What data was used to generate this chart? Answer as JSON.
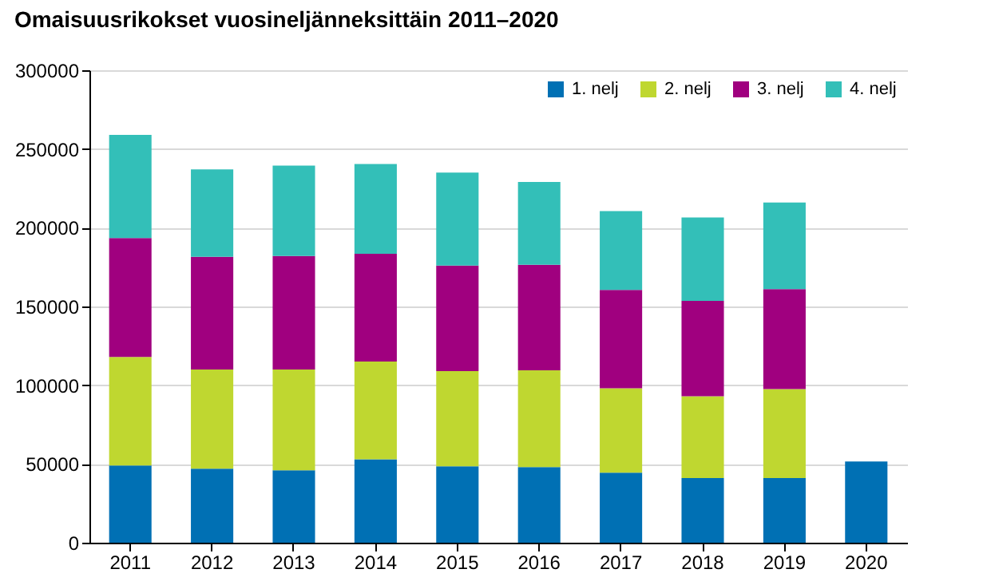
{
  "chart_data": {
    "type": "bar",
    "title": "Omaisuusrikokset vuosineljänneksittäin 2011–2020",
    "categories": [
      "2011",
      "2012",
      "2013",
      "2014",
      "2015",
      "2016",
      "2017",
      "2018",
      "2019",
      "2020"
    ],
    "stacked": true,
    "series": [
      {
        "name": "1. nelj",
        "color": "#0070b4",
        "values": [
          49000,
          47000,
          46000,
          53000,
          48500,
          48000,
          44500,
          41000,
          41000,
          51500
        ]
      },
      {
        "name": "2. nelj",
        "color": "#bfd730",
        "values": [
          69000,
          63000,
          64000,
          62000,
          60500,
          61500,
          53500,
          52000,
          56500,
          null
        ]
      },
      {
        "name": "3. nelj",
        "color": "#a0007f",
        "values": [
          75500,
          71500,
          72000,
          68500,
          67000,
          67000,
          62500,
          60500,
          63500,
          null
        ]
      },
      {
        "name": "4. nelj",
        "color": "#33bfb8",
        "values": [
          65500,
          55500,
          57500,
          57000,
          59000,
          52500,
          50000,
          53000,
          55000,
          null
        ]
      }
    ],
    "ylim": [
      0,
      300000
    ],
    "yticks": [
      0,
      50000,
      100000,
      150000,
      200000,
      250000,
      300000
    ],
    "grid": "y",
    "legend": "top right"
  }
}
